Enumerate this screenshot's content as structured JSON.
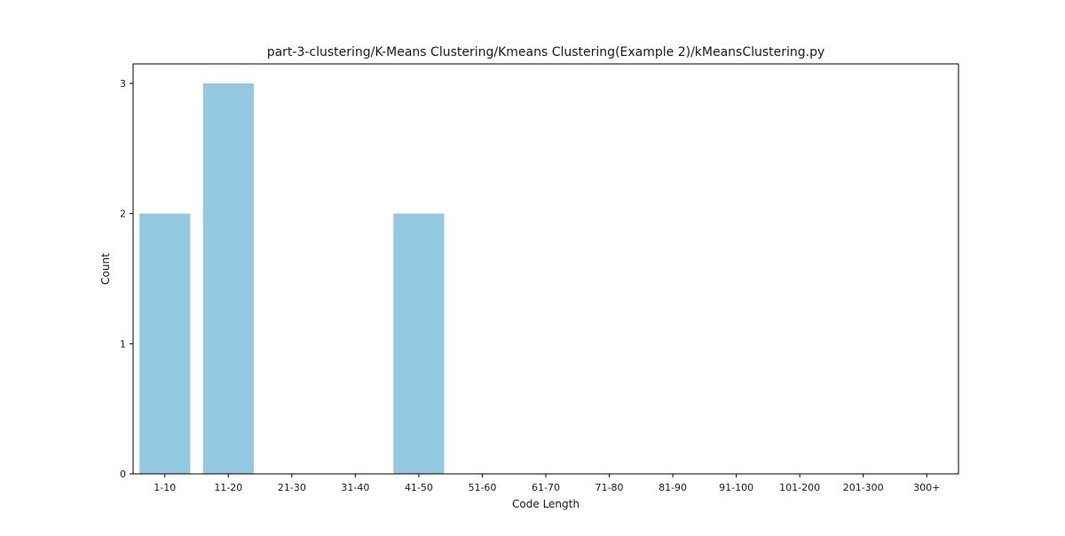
{
  "chart_data": {
    "type": "bar",
    "title": "part-3-clustering/K-Means Clustering/Kmeans Clustering(Example 2)/kMeansClustering.py",
    "xlabel": "Code Length",
    "ylabel": "Count",
    "categories": [
      "1-10",
      "11-20",
      "21-30",
      "31-40",
      "41-50",
      "51-60",
      "61-70",
      "71-80",
      "81-90",
      "91-100",
      "101-200",
      "201-300",
      "300+"
    ],
    "values": [
      2,
      3,
      0,
      0,
      2,
      0,
      0,
      0,
      0,
      0,
      0,
      0,
      0
    ],
    "yticks": [
      "0",
      "1",
      "2",
      "3"
    ],
    "ylim": [
      0,
      3.15
    ],
    "bar_color": "#92c9e0",
    "grid": false,
    "legend": "none"
  }
}
